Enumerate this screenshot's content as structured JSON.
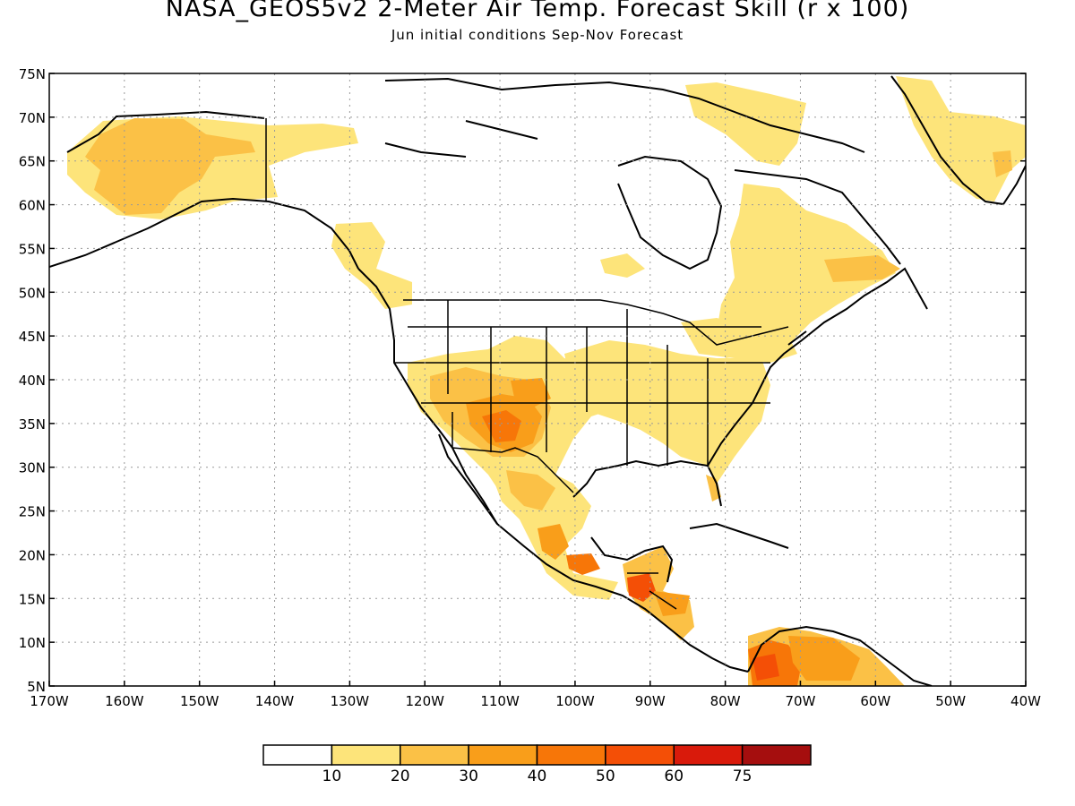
{
  "title": "NASA_GEOS5v2 2-Meter Air Temp. Forecast Skill (r x 100)",
  "subtitle": "Jun initial conditions  Sep-Nov Forecast",
  "map": {
    "lat_ticks": [
      "75N",
      "70N",
      "65N",
      "60N",
      "55N",
      "50N",
      "45N",
      "40N",
      "35N",
      "30N",
      "25N",
      "20N",
      "15N",
      "10N",
      "5N"
    ],
    "lon_ticks": [
      "170W",
      "160W",
      "150W",
      "140W",
      "130W",
      "120W",
      "110W",
      "100W",
      "90W",
      "80W",
      "70W",
      "60W",
      "50W",
      "40W"
    ],
    "lat_range": [
      5,
      75
    ],
    "lon_range": [
      -170,
      -40
    ],
    "grid": "dotted",
    "projection": "lat-lon"
  },
  "colorbar": {
    "labels": [
      "10",
      "20",
      "30",
      "40",
      "50",
      "60",
      "75"
    ],
    "colors": [
      "#ffffff",
      "#fde47a",
      "#fbc146",
      "#f99e1a",
      "#f77608",
      "#f44f06",
      "#d91a0b",
      "#a50e0e"
    ]
  },
  "legend": {
    "levels": [
      {
        "label": "<10",
        "color": "#ffffff"
      },
      {
        "label": "10-20",
        "color": "#fde47a"
      },
      {
        "label": "20-30",
        "color": "#fbc146"
      },
      {
        "label": "30-40",
        "color": "#f99e1a"
      },
      {
        "label": "40-50",
        "color": "#f77608"
      },
      {
        "label": "50-60",
        "color": "#f44f06"
      },
      {
        "label": "60-75",
        "color": "#d91a0b"
      },
      {
        "label": ">75",
        "color": "#a50e0e"
      }
    ]
  }
}
